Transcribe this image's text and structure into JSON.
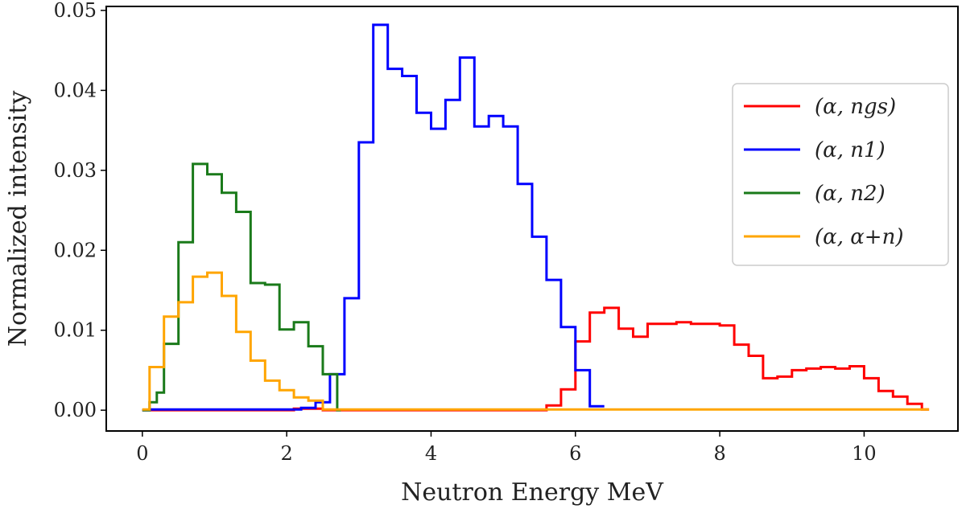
{
  "chart_data": {
    "type": "step",
    "title": "",
    "xlabel": "Neutron Energy MeV",
    "ylabel": "Normalized intensity",
    "xlim": [
      -0.5,
      11.3
    ],
    "ylim": [
      -0.0026,
      0.0505
    ],
    "xticks": [
      0,
      2,
      4,
      6,
      8,
      10
    ],
    "xtick_labels": [
      "0",
      "2",
      "4",
      "6",
      "8",
      "10"
    ],
    "yticks": [
      0.0,
      0.01,
      0.02,
      0.03,
      0.04,
      0.05
    ],
    "ytick_labels": [
      "0.00",
      "0.01",
      "0.02",
      "0.03",
      "0.04",
      "0.05"
    ],
    "grid": false,
    "legend_position": "right",
    "bin_width": 0.2,
    "series": [
      {
        "name": "(α, n_gs)",
        "label": "(α, ngs)",
        "color": "#ff0000",
        "edges": [
          0,
          2.1,
          2.3,
          2.5,
          5.6,
          5.8,
          6.0,
          6.2,
          6.4,
          6.6,
          6.8,
          7.0,
          7.4,
          7.6,
          8.0,
          8.2,
          8.4,
          8.6,
          8.8,
          9.0,
          9.2,
          9.4,
          9.6,
          9.8,
          10.0,
          10.2,
          10.4,
          10.6,
          10.8,
          10.9
        ],
        "values": [
          0,
          0.0002,
          0.0002,
          0,
          0.0006,
          0.0026,
          0.0086,
          0.0122,
          0.0128,
          0.0102,
          0.0092,
          0.0108,
          0.011,
          0.0108,
          0.0106,
          0.0082,
          0.0068,
          0.004,
          0.0042,
          0.005,
          0.0052,
          0.0054,
          0.0052,
          0.0055,
          0.004,
          0.0024,
          0.0017,
          0.0008,
          0.0001
        ]
      },
      {
        "name": "(α, n_1)",
        "label": "(α, n1)",
        "color": "#0000ff",
        "edges": [
          0,
          0.1,
          2.2,
          2.4,
          2.6,
          2.8,
          3.0,
          3.2,
          3.4,
          3.6,
          3.8,
          4.0,
          4.2,
          4.4,
          4.6,
          4.8,
          5.0,
          5.2,
          5.4,
          5.6,
          5.8,
          6.0,
          6.2,
          6.4
        ],
        "values": [
          0,
          0.0001,
          0.0003,
          0.001,
          0.0045,
          0.014,
          0.0335,
          0.0482,
          0.0427,
          0.0418,
          0.0372,
          0.0352,
          0.0388,
          0.0441,
          0.0355,
          0.0368,
          0.0355,
          0.0283,
          0.0217,
          0.0163,
          0.0104,
          0.005,
          0.0005
        ]
      },
      {
        "name": "(α, n_2)",
        "label": "(α, n2)",
        "color": "#1a7a1a",
        "edges": [
          0,
          0.1,
          0.2,
          0.3,
          0.5,
          0.7,
          0.9,
          1.1,
          1.3,
          1.5,
          1.7,
          1.9,
          2.1,
          2.3,
          2.5,
          2.7,
          2.75
        ],
        "values": [
          0,
          0.001,
          0.0022,
          0.0083,
          0.021,
          0.0308,
          0.0295,
          0.0272,
          0.0248,
          0.0159,
          0.0157,
          0.0101,
          0.011,
          0.008,
          0.0045,
          0
        ]
      },
      {
        "name": "(α, α+n)",
        "label": "(α, α+n)",
        "color": "#ffa500",
        "edges": [
          0,
          0.1,
          0.3,
          0.5,
          0.7,
          0.9,
          1.1,
          1.3,
          1.5,
          1.7,
          1.9,
          2.1,
          2.3,
          2.5,
          10.9
        ],
        "values": [
          0.0001,
          0.0054,
          0.0117,
          0.0135,
          0.0167,
          0.0172,
          0.0143,
          0.0098,
          0.0062,
          0.0037,
          0.0025,
          0.0016,
          0.0012,
          0.0001
        ]
      }
    ]
  }
}
